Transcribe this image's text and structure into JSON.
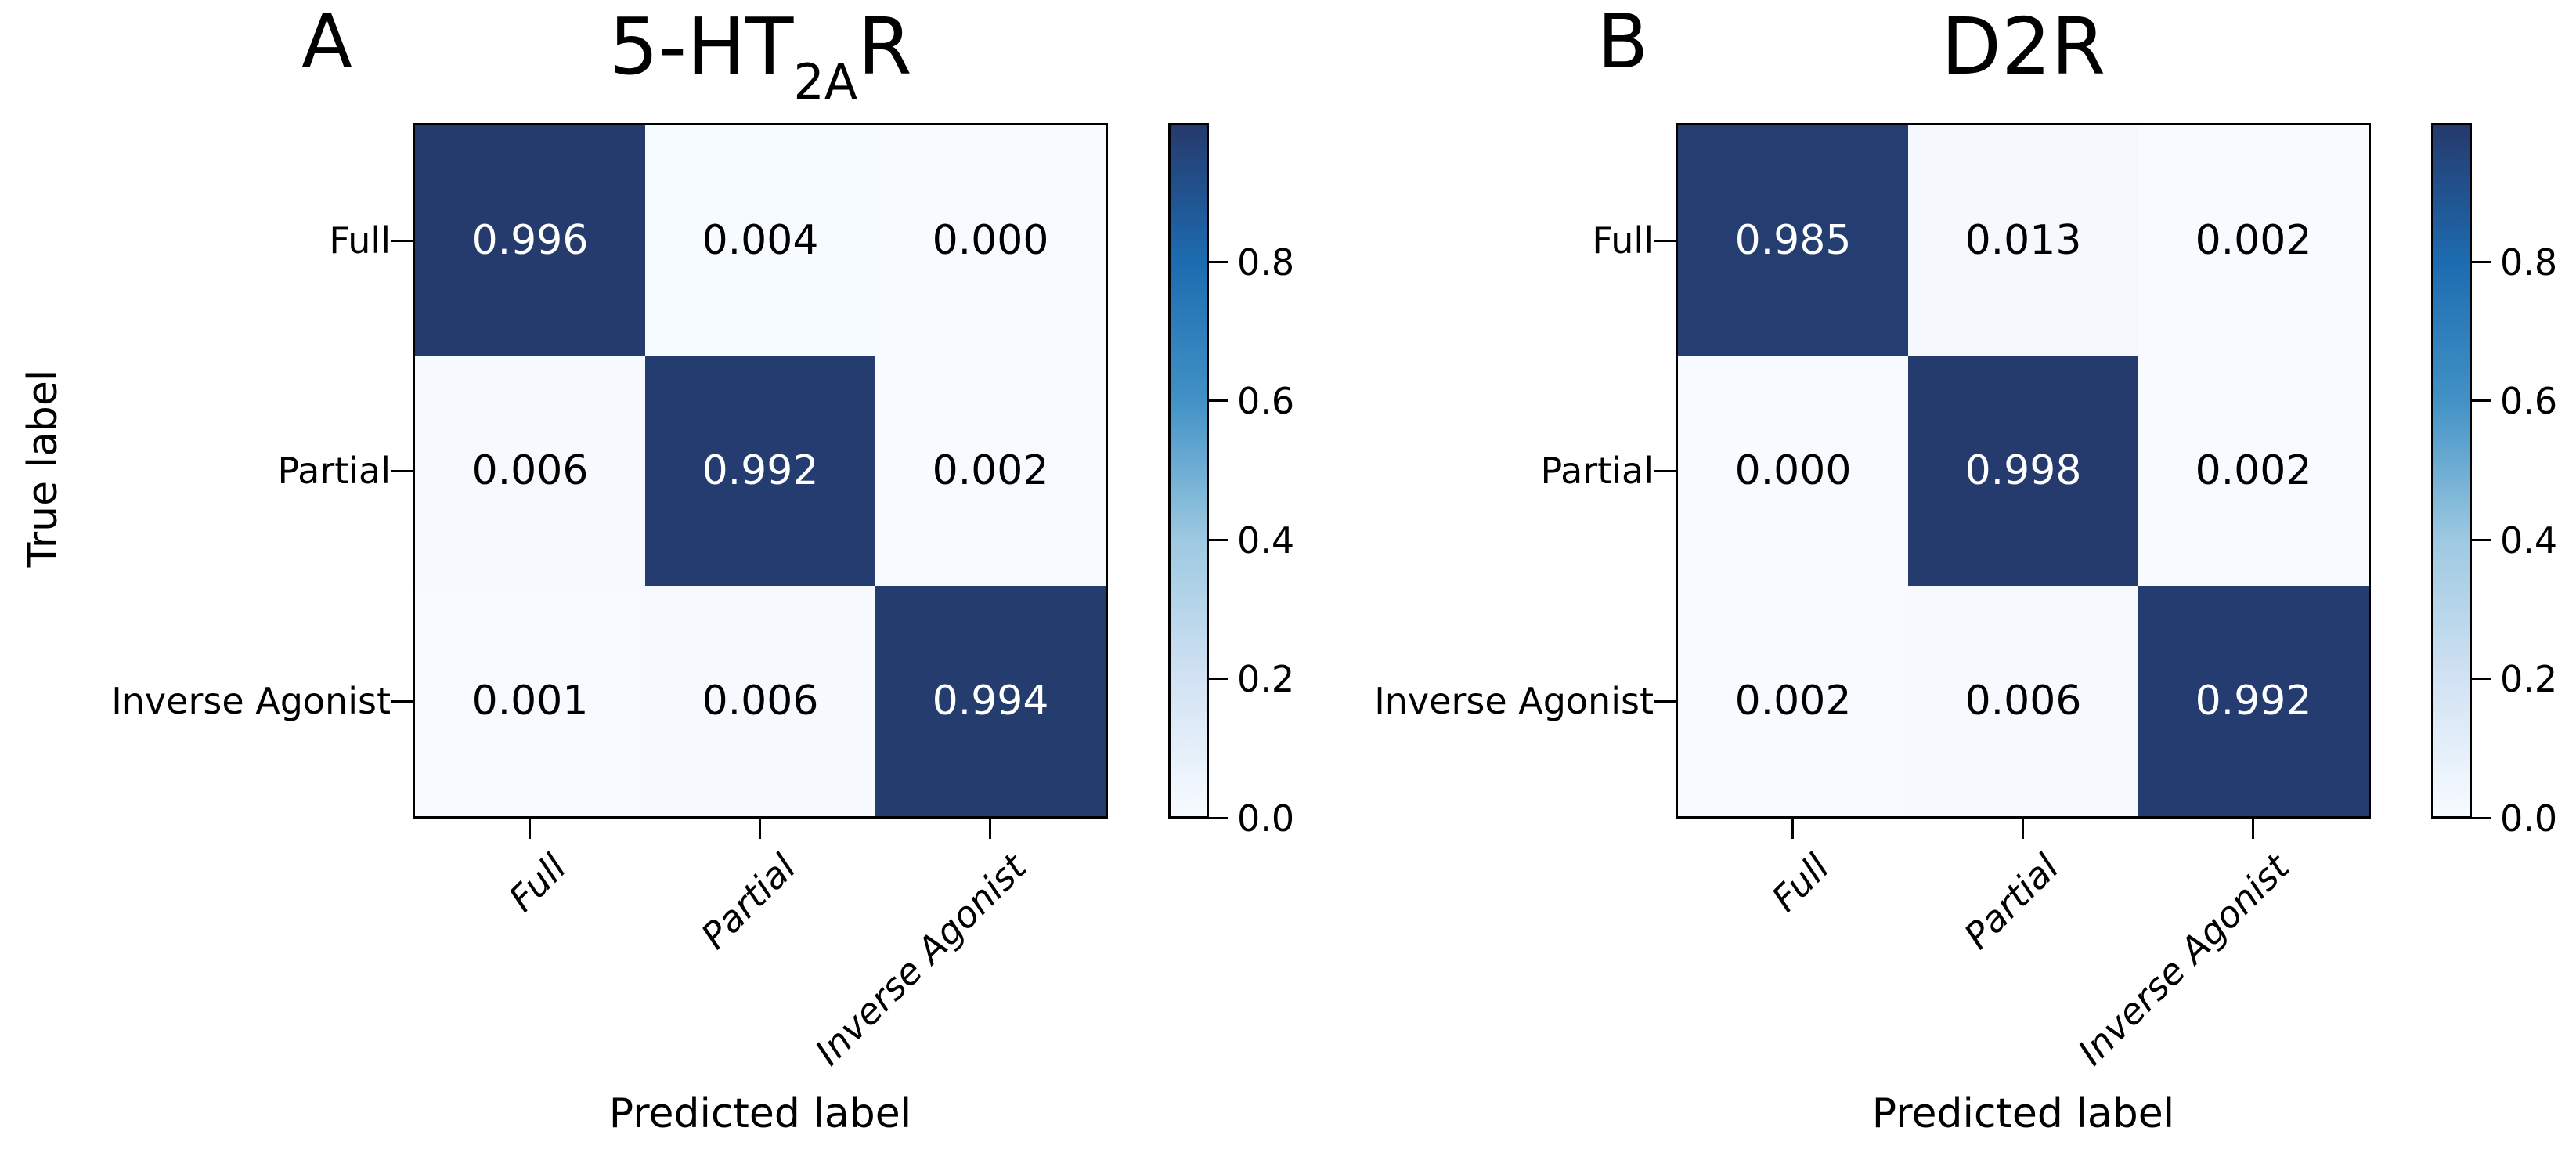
{
  "colors": {
    "background": "#ffffff",
    "spine": "#000000",
    "text": "#000000",
    "cell_text_on_dark": "#ffffff",
    "colormap_stops": [
      {
        "value": 0.0,
        "color": "#f7fbff"
      },
      {
        "value": 0.2,
        "color": "#d1e2f3"
      },
      {
        "value": 0.4,
        "color": "#9dc9e1"
      },
      {
        "value": 0.6,
        "color": "#4292c6"
      },
      {
        "value": 0.8,
        "color": "#1d6cb1"
      },
      {
        "value": 1.0,
        "color": "#253a6d"
      }
    ]
  },
  "colorbar": {
    "range": [
      0.0,
      1.0
    ],
    "ticks": [
      {
        "label": "0.8",
        "value": 0.8
      },
      {
        "label": "0.6",
        "value": 0.6
      },
      {
        "label": "0.4",
        "value": 0.4
      },
      {
        "label": "0.2",
        "value": 0.2
      },
      {
        "label": "0.0",
        "value": 0.0
      }
    ]
  },
  "panels": [
    {
      "letter": "A",
      "title": {
        "prefix": "5-HT",
        "subscript": "2A",
        "suffix": "R"
      },
      "xlabel": "Predicted label",
      "ylabel": "True label",
      "classes": [
        "Full",
        "Partial",
        "Inverse Agonist"
      ],
      "matrix": [
        [
          0.996,
          0.004,
          0.0
        ],
        [
          0.006,
          0.992,
          0.002
        ],
        [
          0.001,
          0.006,
          0.994
        ]
      ],
      "cell_labels": [
        [
          "0.996",
          "0.004",
          "0.000"
        ],
        [
          "0.006",
          "0.992",
          "0.002"
        ],
        [
          "0.001",
          "0.006",
          "0.994"
        ]
      ]
    },
    {
      "letter": "B",
      "title": {
        "prefix": "D2R",
        "subscript": "",
        "suffix": ""
      },
      "xlabel": "Predicted label",
      "ylabel": "",
      "classes": [
        "Full",
        "Partial",
        "Inverse Agonist"
      ],
      "matrix": [
        [
          0.985,
          0.013,
          0.002
        ],
        [
          0.0,
          0.998,
          0.002
        ],
        [
          0.002,
          0.006,
          0.992
        ]
      ],
      "cell_labels": [
        [
          "0.985",
          "0.013",
          "0.002"
        ],
        [
          "0.000",
          "0.998",
          "0.002"
        ],
        [
          "0.002",
          "0.006",
          "0.992"
        ]
      ]
    }
  ],
  "chart_data": [
    {
      "type": "heatmap",
      "panel_letter": "A",
      "title": "5-HT2AR",
      "x_categories": [
        "Full",
        "Partial",
        "Inverse Agonist"
      ],
      "y_categories": [
        "Full",
        "Partial",
        "Inverse Agonist"
      ],
      "xlabel": "Predicted label",
      "ylabel": "True label",
      "values": [
        [
          0.996,
          0.004,
          0.0
        ],
        [
          0.006,
          0.992,
          0.002
        ],
        [
          0.001,
          0.006,
          0.994
        ]
      ],
      "colormap": "Blues",
      "vmin": 0.0,
      "vmax": 1.0,
      "colorbar_ticks": [
        0.0,
        0.2,
        0.4,
        0.6,
        0.8
      ],
      "legend_position": "right-colorbar",
      "grid": false
    },
    {
      "type": "heatmap",
      "panel_letter": "B",
      "title": "D2R",
      "x_categories": [
        "Full",
        "Partial",
        "Inverse Agonist"
      ],
      "y_categories": [
        "Full",
        "Partial",
        "Inverse Agonist"
      ],
      "xlabel": "Predicted label",
      "ylabel": "",
      "values": [
        [
          0.985,
          0.013,
          0.002
        ],
        [
          0.0,
          0.998,
          0.002
        ],
        [
          0.002,
          0.006,
          0.992
        ]
      ],
      "colormap": "Blues",
      "vmin": 0.0,
      "vmax": 1.0,
      "colorbar_ticks": [
        0.0,
        0.2,
        0.4,
        0.6,
        0.8
      ],
      "legend_position": "right-colorbar",
      "grid": false
    }
  ]
}
